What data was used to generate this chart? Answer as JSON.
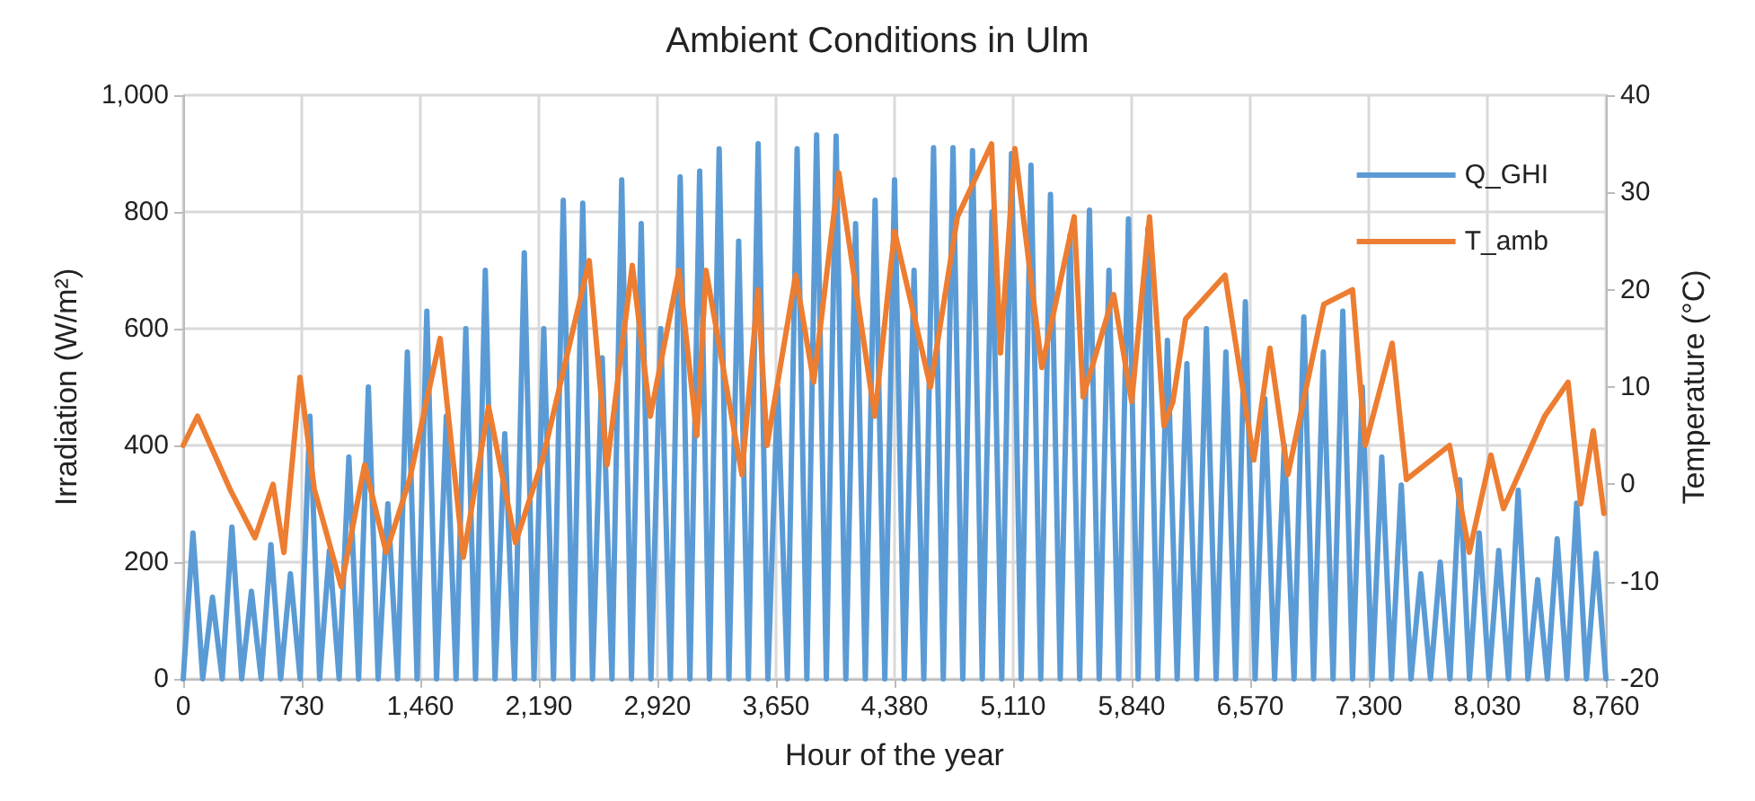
{
  "chart_data": {
    "type": "line",
    "title": "Ambient Conditions in Ulm",
    "xlabel": "Hour of the year",
    "ylabel": "Irradiation (W/m²)",
    "y2label": "Temperature (°C)",
    "xlim": [
      0,
      8760
    ],
    "xticks": [
      {
        "value": 0,
        "label": "0"
      },
      {
        "value": 730,
        "label": "730"
      },
      {
        "value": 1460,
        "label": "1,460"
      },
      {
        "value": 2190,
        "label": "2,190"
      },
      {
        "value": 2920,
        "label": "2,920"
      },
      {
        "value": 3650,
        "label": "3,650"
      },
      {
        "value": 4380,
        "label": "4,380"
      },
      {
        "value": 5110,
        "label": "5,110"
      },
      {
        "value": 5840,
        "label": "5,840"
      },
      {
        "value": 6570,
        "label": "6,570"
      },
      {
        "value": 7300,
        "label": "7,300"
      },
      {
        "value": 8030,
        "label": "8,030"
      },
      {
        "value": 8760,
        "label": "8,760"
      }
    ],
    "ylim": [
      0,
      1000
    ],
    "yticks": [
      0,
      200,
      400,
      600,
      800,
      {
        "value": 1000,
        "label": "1,000"
      }
    ],
    "y2lim": [
      -20,
      40
    ],
    "y2ticks": [
      -20,
      -10,
      0,
      10,
      20,
      30,
      40
    ],
    "grid": true,
    "legend": "top right",
    "marker": "none",
    "line_style": "solid",
    "series": [
      {
        "name": "Q_GHI",
        "color": "#5b9bd5",
        "x": [
          0,
          60,
          120,
          180,
          240,
          300,
          360,
          420,
          480,
          540,
          600,
          660,
          720,
          780,
          840,
          900,
          960,
          1020,
          1080,
          1140,
          1200,
          1260,
          1320,
          1380,
          1440,
          1500,
          1560,
          1620,
          1680,
          1740,
          1800,
          1860,
          1920,
          1980,
          2040,
          2100,
          2160,
          2220,
          2280,
          2340,
          2400,
          2460,
          2520,
          2580,
          2640,
          2700,
          2760,
          2820,
          2880,
          2940,
          3000,
          3060,
          3120,
          3180,
          3240,
          3300,
          3360,
          3420,
          3480,
          3540,
          3600,
          3660,
          3720,
          3780,
          3840,
          3900,
          3960,
          4020,
          4080,
          4140,
          4200,
          4260,
          4320,
          4380,
          4440,
          4500,
          4560,
          4620,
          4680,
          4740,
          4800,
          4860,
          4920,
          4980,
          5040,
          5100,
          5160,
          5220,
          5280,
          5340,
          5400,
          5460,
          5520,
          5580,
          5640,
          5700,
          5760,
          5820,
          5880,
          5940,
          6000,
          6060,
          6120,
          6180,
          6240,
          6300,
          6360,
          6420,
          6480,
          6540,
          6600,
          6660,
          6720,
          6780,
          6840,
          6900,
          6960,
          7020,
          7080,
          7140,
          7200,
          7260,
          7320,
          7380,
          7440,
          7500,
          7560,
          7620,
          7680,
          7740,
          7800,
          7860,
          7920,
          7980,
          8040,
          8100,
          8160,
          8220,
          8280,
          8340,
          8400,
          8460,
          8520,
          8580,
          8640,
          8700,
          8760
        ],
        "values": [
          0,
          250,
          0,
          140,
          0,
          260,
          0,
          150,
          0,
          230,
          0,
          180,
          0,
          450,
          0,
          220,
          0,
          380,
          0,
          500,
          0,
          300,
          0,
          560,
          0,
          630,
          0,
          450,
          0,
          600,
          0,
          700,
          0,
          420,
          0,
          730,
          0,
          600,
          0,
          820,
          0,
          815,
          0,
          550,
          0,
          855,
          0,
          780,
          0,
          600,
          0,
          860,
          0,
          870,
          0,
          908,
          0,
          750,
          0,
          917,
          0,
          500,
          0,
          908,
          0,
          932,
          0,
          930,
          0,
          780,
          0,
          820,
          0,
          855,
          0,
          700,
          0,
          910,
          0,
          910,
          0,
          905,
          0,
          800,
          0,
          900,
          0,
          880,
          0,
          830,
          0,
          760,
          0,
          803,
          0,
          700,
          0,
          788,
          0,
          772,
          0,
          580,
          0,
          540,
          0,
          600,
          0,
          560,
          0,
          646,
          0,
          480,
          0,
          400,
          0,
          620,
          0,
          560,
          0,
          630,
          0,
          500,
          0,
          380,
          0,
          332,
          0,
          180,
          0,
          200,
          0,
          341,
          0,
          250,
          0,
          220,
          0,
          323,
          0,
          170,
          0,
          240,
          0,
          301,
          0,
          215,
          0
        ]
      },
      {
        "name": "T_amb",
        "color": "#ed7d31",
        "axis": "y2",
        "x": [
          0,
          88,
          288,
          442,
          553,
          620,
          719,
          807,
          973,
          1117,
          1250,
          1394,
          1582,
          1725,
          1880,
          2046,
          2212,
          2500,
          2610,
          2765,
          2876,
          3052,
          3163,
          3219,
          3440,
          3539,
          3595,
          3771,
          3882,
          4037,
          4258,
          4380,
          4601,
          4767,
          4977,
          5032,
          5121,
          5287,
          5486,
          5541,
          5729,
          5840,
          5950,
          6039,
          6094,
          6172,
          6415,
          6592,
          6691,
          6802,
          7023,
          7200,
          7278,
          7444,
          7532,
          7797,
          7919,
          8052,
          8129,
          8383,
          8527,
          8605,
          8682,
          8748
        ],
        "values": [
          4,
          7,
          -0.5,
          -5.5,
          0,
          -7,
          11,
          -0.5,
          -10.5,
          2,
          -7,
          0.5,
          15,
          -7.5,
          8,
          -6,
          2.5,
          23,
          2,
          22.5,
          7,
          22,
          5,
          22,
          1,
          20,
          4,
          21.5,
          10.5,
          32,
          7,
          26,
          10,
          27.5,
          35,
          13.5,
          34.5,
          12,
          27.5,
          9,
          19.5,
          8.5,
          27.5,
          6,
          8.5,
          17,
          21.5,
          2.5,
          14,
          1,
          18.5,
          20,
          4,
          14.5,
          0.5,
          4,
          -7,
          3,
          -2.5,
          7,
          10.5,
          -2,
          5.5,
          -3
        ]
      }
    ]
  }
}
